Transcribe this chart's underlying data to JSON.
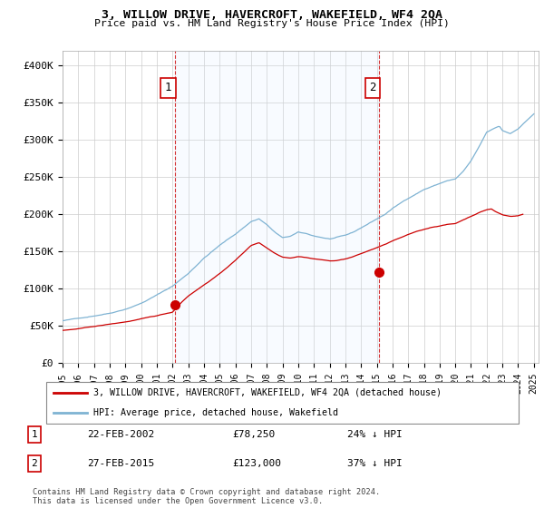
{
  "title": "3, WILLOW DRIVE, HAVERCROFT, WAKEFIELD, WF4 2QA",
  "subtitle": "Price paid vs. HM Land Registry's House Price Index (HPI)",
  "legend_line1": "3, WILLOW DRIVE, HAVERCROFT, WAKEFIELD, WF4 2QA (detached house)",
  "legend_line2": "HPI: Average price, detached house, Wakefield",
  "sale1_date": "22-FEB-2002",
  "sale1_price": "£78,250",
  "sale1_hpi": "24% ↓ HPI",
  "sale2_date": "27-FEB-2015",
  "sale2_price": "£123,000",
  "sale2_hpi": "37% ↓ HPI",
  "footer": "Contains HM Land Registry data © Crown copyright and database right 2024.\nThis data is licensed under the Open Government Licence v3.0.",
  "property_color": "#cc0000",
  "hpi_color": "#7fb3d3",
  "shade_color": "#ddeeff",
  "ylim": [
    0,
    420000
  ],
  "yticks": [
    0,
    50000,
    100000,
    150000,
    200000,
    250000,
    300000,
    350000,
    400000
  ],
  "ytick_labels": [
    "£0",
    "£50K",
    "£100K",
    "£150K",
    "£200K",
    "£250K",
    "£300K",
    "£350K",
    "£400K"
  ],
  "sale1_year": 2002.13,
  "sale1_val": 78250,
  "sale2_year": 2015.15,
  "sale2_val": 123000,
  "xlim_min": 1995.0,
  "xlim_max": 2025.3
}
